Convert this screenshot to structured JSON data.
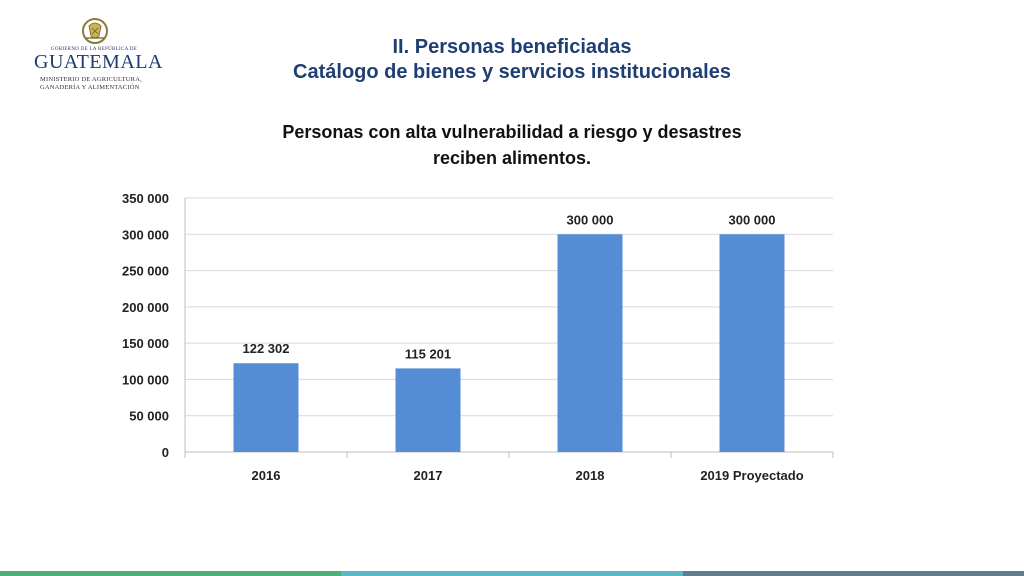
{
  "logo": {
    "gov_text": "GOBIERNO DE LA REPÚBLICA DE",
    "country": "GUATEMALA",
    "ministry_line1": "MINISTERIO DE AGRICULTURA,",
    "ministry_line2": "GANADERÍA Y ALIMENTACIÓN"
  },
  "header": {
    "title_line1": "II. Personas beneficiadas",
    "title_line2": "Catálogo de bienes y servicios institucionales"
  },
  "colors": {
    "bar": "#548dd4",
    "title": "#1f3f74",
    "gridline": "#d9d9d9",
    "bottom_bar": [
      "#4caf7a",
      "#5bb8c5",
      "#5f7d8e"
    ]
  },
  "chart_data": {
    "type": "bar",
    "title_line1": "Personas con alta vulnerabilidad a riesgo y desastres",
    "title_line2": "reciben alimentos.",
    "categories": [
      "2016",
      "2017",
      "2018",
      "2019 Proyectado"
    ],
    "values": [
      122302,
      115201,
      300000,
      300000
    ],
    "value_labels": [
      "122 302",
      "115 201",
      "300 000",
      "300 000"
    ],
    "yticks": [
      0,
      50000,
      100000,
      150000,
      200000,
      250000,
      300000,
      350000
    ],
    "ytick_labels": [
      "0",
      "50 000",
      "100 000",
      "150 000",
      "200 000",
      "250 000",
      "300 000",
      "350 000"
    ],
    "ylim": [
      0,
      350000
    ],
    "grid": true,
    "legend": "none"
  }
}
